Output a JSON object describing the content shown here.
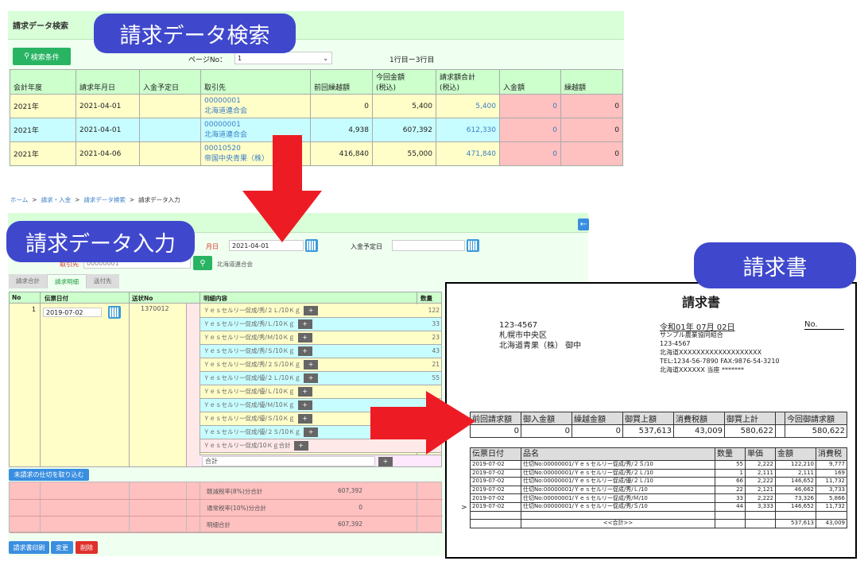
{
  "search": {
    "label": "請求データ検索",
    "header": "請求データ検索",
    "search_button": "検索条件",
    "page_label": "ページNo：",
    "page_value": "1",
    "range": "1行目ー3行目",
    "columns": [
      "会計年度",
      "請求年月日",
      "入金予定日",
      "取引先",
      "前回繰越額",
      "今回金額\n(税込)",
      "請求額合計\n(税込)",
      "入金額",
      "繰越額"
    ],
    "rows": [
      {
        "year": "2021年",
        "date": "2021-04-01",
        "due": "",
        "code": "00000001",
        "name": "北海道連合会",
        "prev": "0",
        "current": "5,400",
        "total": "5,400",
        "paid": "0",
        "carry": "0"
      },
      {
        "year": "2021年",
        "date": "2021-04-01",
        "due": "",
        "code": "00000001",
        "name": "北海道連合会",
        "prev": "4,938",
        "current": "607,392",
        "total": "612,330",
        "paid": "0",
        "carry": "0"
      },
      {
        "year": "2021年",
        "date": "2021-04-06",
        "due": "",
        "code": "00010520",
        "name": "帝国中央青果（株）",
        "prev": "416,840",
        "current": "55,000",
        "total": "471,840",
        "paid": "0",
        "carry": "0"
      }
    ]
  },
  "entry": {
    "label": "請求データ入力",
    "breadcrumb": [
      "ホーム",
      "請求・入金",
      "請求データ検索",
      "請求データ入力"
    ],
    "sep": ">",
    "date_label": "月日",
    "date_value": "2021-04-01",
    "due_label": "入金予定日",
    "due_value": "",
    "client_label": "取引先",
    "client_value": "00000001",
    "client_name": "北海道連合会",
    "tabs": [
      "請求合計",
      "請求明細",
      "送付先"
    ],
    "active_tab": 1,
    "columns": [
      "No",
      "伝票日付",
      "送状No",
      "",
      "明細内容",
      "数量"
    ],
    "row_no": "1",
    "slip_date": "2019-07-02",
    "invoice_no": "1370012",
    "mark": "※",
    "items": [
      {
        "name": "Ｙｅｓセルリー促成/秀/２Ｌ/10Ｋｇ",
        "qty": "122"
      },
      {
        "name": "Ｙｅｓセルリー促成/秀/Ｌ/10Ｋｇ",
        "qty": "33"
      },
      {
        "name": "Ｙｅｓセルリー促成/秀/Ｍ/10Ｋｇ",
        "qty": "23"
      },
      {
        "name": "Ｙｅｓセルリー促成/秀/Ｓ/10Ｋｇ",
        "qty": "43"
      },
      {
        "name": "Ｙｅｓセルリー促成/秀/２Ｓ/10Ｋｇ",
        "qty": "21"
      },
      {
        "name": "Ｙｅｓセルリー促成/優/２Ｌ/10Ｋｇ",
        "qty": "55"
      },
      {
        "name": "Ｙｅｓセルリー促成/優/Ｌ/10Ｋｇ",
        "qty": ""
      },
      {
        "name": "Ｙｅｓセルリー促成/優/Ｍ/10Ｋｇ",
        "qty": ""
      },
      {
        "name": "Ｙｅｓセルリー促成/優/Ｓ/10Ｋｇ",
        "qty": ""
      },
      {
        "name": "Ｙｅｓセルリー促成/優/２Ｓ/10Ｋｇ",
        "qty": ""
      },
      {
        "name": "Ｙｅｓセルリー促成/10Ｋｇ合計",
        "qty": ""
      }
    ],
    "total_input": "合計",
    "plus": "+",
    "import_button": "未請求の仕切を取り込む",
    "summary": [
      {
        "label": "軽減税率(8%)分合計",
        "value": "607,392"
      },
      {
        "label": "通常税率(10%)分合計",
        "value": "0"
      },
      {
        "label": "明細合計",
        "value": "607,392"
      }
    ],
    "buttons": {
      "print": "請求書印刷",
      "update": "変更",
      "delete": "削除"
    }
  },
  "invoice": {
    "label": "請求書",
    "title": "請求書",
    "to": [
      "123-4567",
      "札幌市中央区",
      "北海道青果（株） 御中"
    ],
    "date": "令和01年 07月 02日",
    "no": "No.",
    "from": [
      "サンプル農業協同組合",
      "123-4567",
      "北海道XXXXXXXXXXXXXXXXXXX",
      "TEL:1234-56-7890 FAX:9876-54-3210",
      "北海道XXXXXX 当座 *******"
    ],
    "summary_headers": [
      "前回請求額",
      "御入金額",
      "繰越金額",
      "御買上額",
      "消費税額",
      "御買上計",
      "",
      "今回御請求額"
    ],
    "summary_values": [
      "0",
      "0",
      "0",
      "537,613",
      "43,009",
      "580,622",
      "",
      "580,622"
    ],
    "detail_headers": [
      "伝票日付",
      "品名",
      "数量",
      "単価",
      "金額",
      "消費税"
    ],
    "details": [
      [
        "2019-07-02",
        "仕切No:00000001/Ｙｅｓセルリー促成/秀/２Ｓ/10",
        "55",
        "2,222",
        "122,210",
        "9,777"
      ],
      [
        "2019-07-02",
        "仕切No:00000001/Ｙｅｓセルリー促成/秀/２Ｌ/10",
        "1",
        "2,111",
        "2,111",
        "169"
      ],
      [
        "2019-07-02",
        "仕切No:00000001/Ｙｅｓセルリー促成/優/２Ｌ/10",
        "66",
        "2,222",
        "146,652",
        "11,732"
      ],
      [
        "2019-07-02",
        "仕切No:00000001/Ｙｅｓセルリー促成/秀/Ｌ/10",
        "22",
        "2,121",
        "46,662",
        "3,733"
      ],
      [
        "2019-07-02",
        "仕切No:00000001/Ｙｅｓセルリー促成/秀/Ｍ/10",
        "33",
        "2,222",
        "73,326",
        "5,866"
      ],
      [
        "2019-07-02",
        "仕切No:00000001/Ｙｅｓセルリー促成/秀/Ｓ/10",
        "44",
        "3,333",
        "146,652",
        "11,732"
      ],
      [
        "",
        "",
        "",
        "",
        "",
        ""
      ]
    ],
    "total_label": "<<合計>>",
    "total_amount": "537,613",
    "total_tax": "43,009",
    "pointer": ">"
  },
  "colors": {
    "pill": "#3f48cc",
    "arrow": "#ed1c24",
    "green_btn": "#28b463",
    "blue_btn": "#3a8ee0",
    "red_btn": "#e0302a"
  }
}
